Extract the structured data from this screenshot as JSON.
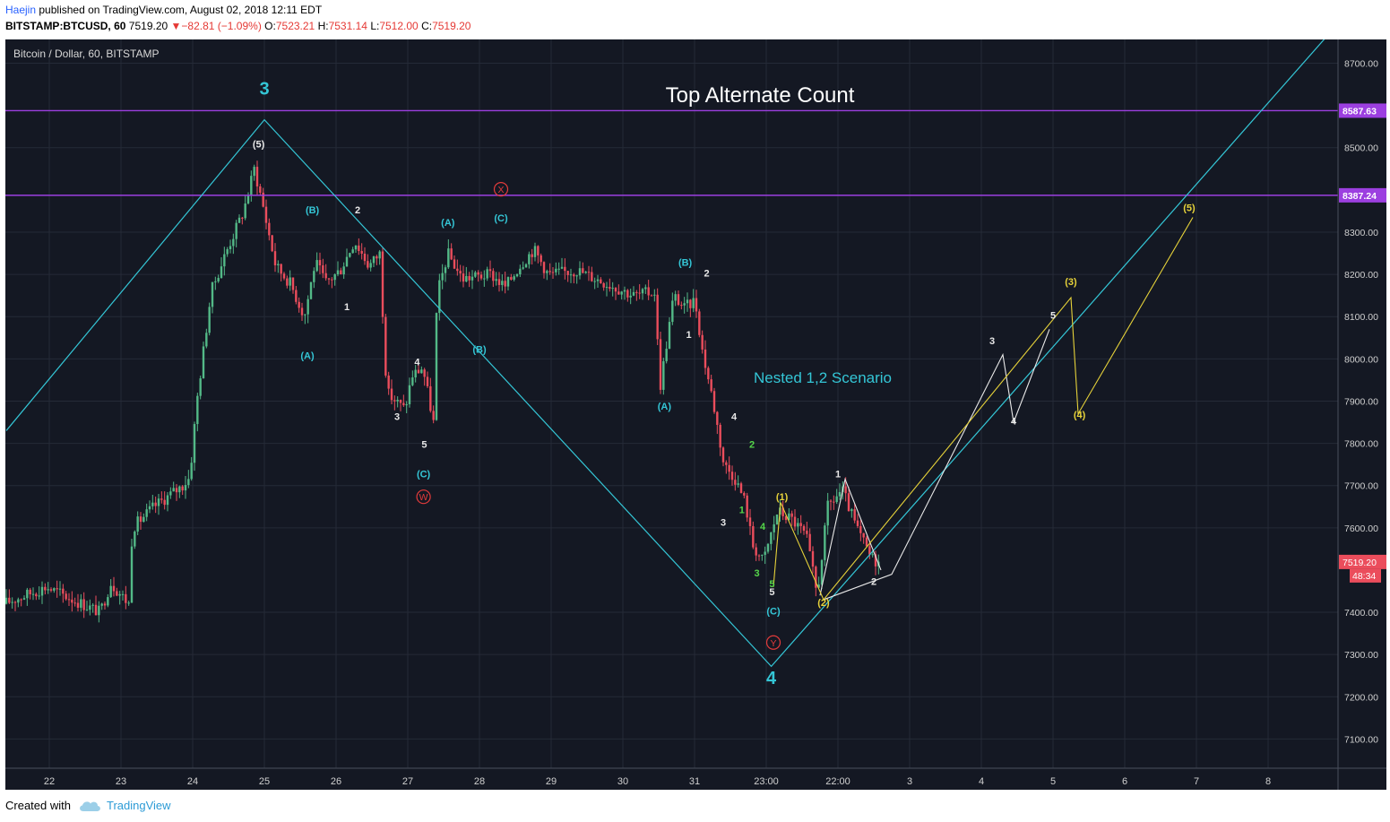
{
  "header": {
    "author": "Haejin",
    "published_text": "published on TradingView.com, August 02, 2018 12:11 EDT",
    "symbol": "BITSTAMP:BTCUSD, 60",
    "last": "7519.20",
    "change": "−82.81 (−1.09%)",
    "o_label": "O:",
    "o": "7523.21",
    "h_label": "H:",
    "h": "7531.14",
    "l_label": "L:",
    "l": "7512.00",
    "c_label": "C:",
    "c": "7519.20"
  },
  "chart": {
    "legend": "Bitcoin / Dollar, 60, BITSTAMP",
    "title": "Top Alternate Count",
    "scenario": "Nested 1,2 Scenario",
    "colors": {
      "background": "#141823",
      "up": "#53b987",
      "down": "#eb4d5c",
      "wave": "#34c6d6",
      "alt_white": "#e8e8e8",
      "alt_yellow": "#e6d23a",
      "green": "#55d64a",
      "resistance": "#9c3fe0",
      "circle_red": "#e33b3b"
    },
    "price_axis": [
      {
        "price": 8700,
        "label": "8700.00"
      },
      {
        "price": 8500,
        "label": "8500.00"
      },
      {
        "price": 8300,
        "label": "8300.00"
      },
      {
        "price": 8200,
        "label": "8200.00"
      },
      {
        "price": 8100,
        "label": "8100.00"
      },
      {
        "price": 8000,
        "label": "8000.00"
      },
      {
        "price": 7900,
        "label": "7900.00"
      },
      {
        "price": 7800,
        "label": "7800.00"
      },
      {
        "price": 7700,
        "label": "7700.00"
      },
      {
        "price": 7600,
        "label": "7600.00"
      },
      {
        "price": 7400,
        "label": "7400.00"
      },
      {
        "price": 7300,
        "label": "7300.00"
      },
      {
        "price": 7200,
        "label": "7200.00"
      },
      {
        "price": 7100,
        "label": "7100.00"
      }
    ],
    "levels": [
      {
        "price": 8587.63,
        "label": "8587.63"
      },
      {
        "price": 8387.24,
        "label": "8387.24"
      }
    ],
    "last_price": {
      "price": 7519.2,
      "label": "7519.20",
      "countdown": "48:34"
    },
    "time_axis": [
      "22",
      "23",
      "24",
      "25",
      "26",
      "27",
      "28",
      "29",
      "30",
      "31",
      "23:00",
      "22:00",
      "3",
      "4",
      "5",
      "6",
      "7",
      "8"
    ],
    "labels": [
      {
        "text": "3",
        "type": "big",
        "color": "wave"
      },
      {
        "text": "(5)",
        "type": "small",
        "color": "alt_white"
      },
      {
        "text": "(B)",
        "type": "small",
        "color": "wave"
      },
      {
        "text": "2",
        "type": "small",
        "color": "alt_white"
      },
      {
        "text": "1",
        "type": "small",
        "color": "alt_white"
      },
      {
        "text": "(A)",
        "type": "small",
        "color": "wave"
      },
      {
        "text": "4",
        "type": "small",
        "color": "alt_white"
      },
      {
        "text": "3",
        "type": "small",
        "color": "alt_white"
      },
      {
        "text": "5",
        "type": "small",
        "color": "alt_white"
      },
      {
        "text": "(C)",
        "type": "small",
        "color": "wave"
      },
      {
        "text": "W",
        "type": "circle",
        "color": "circle_red"
      },
      {
        "text": "(A)",
        "type": "small",
        "color": "wave"
      },
      {
        "text": "(B)",
        "type": "small",
        "color": "wave"
      },
      {
        "text": "(C)",
        "type": "small",
        "color": "wave"
      },
      {
        "text": "X",
        "type": "circle",
        "color": "circle_red"
      },
      {
        "text": "(B)",
        "type": "small",
        "color": "wave"
      },
      {
        "text": "2",
        "type": "small",
        "color": "alt_white"
      },
      {
        "text": "1",
        "type": "small",
        "color": "alt_white"
      },
      {
        "text": "(A)",
        "type": "small",
        "color": "wave"
      },
      {
        "text": "4",
        "type": "small",
        "color": "alt_white"
      },
      {
        "text": "2",
        "type": "small",
        "color": "green"
      },
      {
        "text": "3",
        "type": "small",
        "color": "alt_white"
      },
      {
        "text": "1",
        "type": "small",
        "color": "green"
      },
      {
        "text": "4",
        "type": "small",
        "color": "green"
      },
      {
        "text": "3",
        "type": "small",
        "color": "green"
      },
      {
        "text": "5",
        "type": "small",
        "color": "green"
      },
      {
        "text": "5",
        "type": "small",
        "color": "alt_white"
      },
      {
        "text": "(C)",
        "type": "small",
        "color": "wave"
      },
      {
        "text": "Y",
        "type": "circle",
        "color": "circle_red"
      },
      {
        "text": "4",
        "type": "big",
        "color": "wave"
      },
      {
        "text": "(1)",
        "type": "small",
        "color": "alt_yellow"
      },
      {
        "text": "(2)",
        "type": "small",
        "color": "alt_yellow"
      },
      {
        "text": "1",
        "type": "small",
        "color": "alt_white"
      },
      {
        "text": "2",
        "type": "small",
        "color": "alt_white"
      },
      {
        "text": "3",
        "type": "small",
        "color": "alt_white"
      },
      {
        "text": "4",
        "type": "small",
        "color": "alt_white"
      },
      {
        "text": "5",
        "type": "small",
        "color": "alt_white"
      },
      {
        "text": "(3)",
        "type": "small",
        "color": "alt_yellow"
      },
      {
        "text": "(4)",
        "type": "small",
        "color": "alt_yellow"
      },
      {
        "text": "(5)",
        "type": "small",
        "color": "alt_yellow"
      }
    ]
  },
  "footer": {
    "created_with": "Created with",
    "brand": "TradingView",
    "logo_icon": "cloud-logo-icon"
  }
}
